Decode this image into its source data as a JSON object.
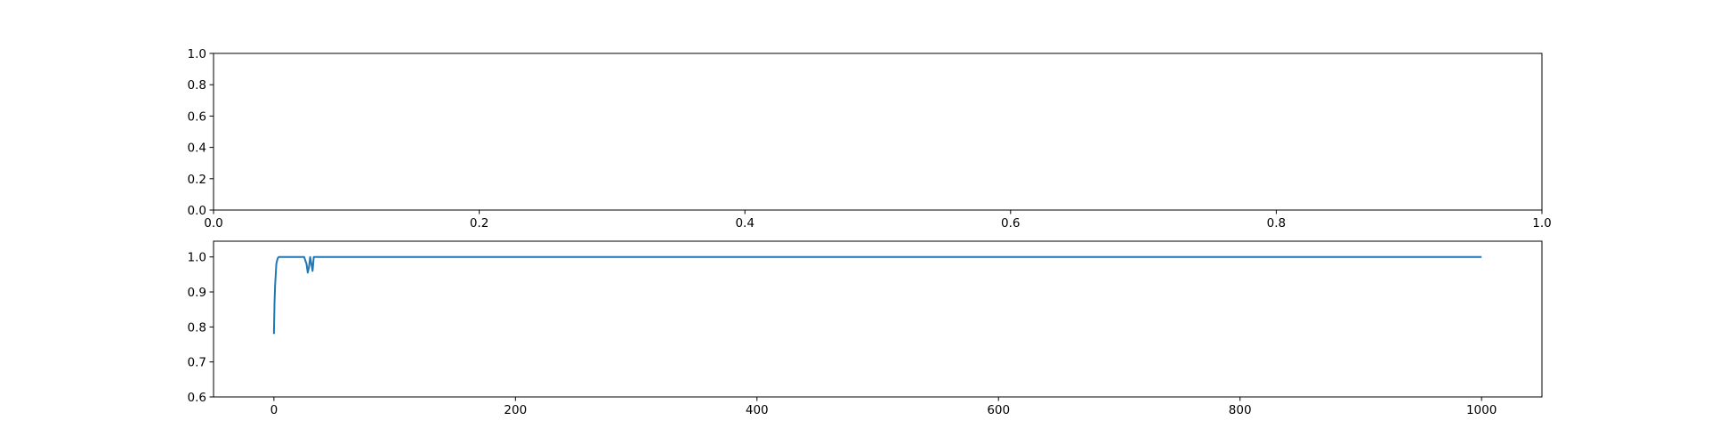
{
  "chart_data": [
    {
      "type": "line",
      "title": "",
      "xlabel": "",
      "ylabel": "",
      "xlim": [
        0.0,
        1.0
      ],
      "ylim": [
        0.0,
        1.0
      ],
      "xticks": [
        "0.0",
        "0.2",
        "0.4",
        "0.6",
        "0.8",
        "1.0"
      ],
      "yticks": [
        "0.0",
        "0.2",
        "0.4",
        "0.6",
        "0.8",
        "1.0"
      ],
      "grid": false,
      "series": []
    },
    {
      "type": "line",
      "title": "",
      "xlabel": "",
      "ylabel": "",
      "xlim": [
        -50,
        1050
      ],
      "ylim": [
        0.6,
        1.045
      ],
      "xticks": [
        "0",
        "200",
        "400",
        "600",
        "800",
        "1000"
      ],
      "yticks": [
        "0.6",
        "0.7",
        "0.8",
        "0.9",
        "1.0"
      ],
      "grid": false,
      "series": [
        {
          "color": "#1f77b4",
          "x": [
            0,
            0.5,
            1,
            1.5,
            2,
            3,
            4,
            5,
            10,
            20,
            25,
            27,
            28,
            29,
            30,
            31,
            32,
            33,
            35,
            40,
            100,
            500,
            1000
          ],
          "y": [
            0.78,
            0.87,
            0.92,
            0.95,
            0.98,
            0.995,
            1.0,
            1.0,
            1.0,
            1.0,
            1.0,
            0.98,
            0.955,
            0.97,
            1.0,
            0.98,
            0.96,
            1.0,
            1.0,
            1.0,
            1.0,
            1.0,
            1.0
          ]
        }
      ]
    }
  ]
}
